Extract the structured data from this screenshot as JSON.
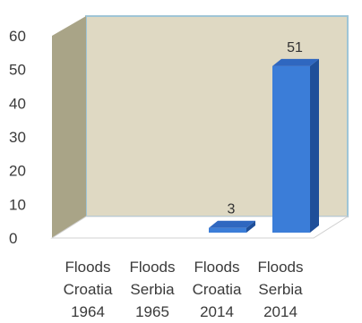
{
  "chart_data": {
    "type": "bar",
    "title": "",
    "xlabel": "",
    "ylabel": "",
    "ylim": [
      0,
      60
    ],
    "yticks": [
      0,
      10,
      20,
      30,
      40,
      50,
      60
    ],
    "categories": [
      [
        "Floods",
        "Croatia",
        "1964"
      ],
      [
        "Floods",
        "Serbia",
        "1965"
      ],
      [
        "Floods",
        "Croatia",
        "2014"
      ],
      [
        "Floods",
        "Serbia",
        "2014"
      ]
    ],
    "values": [
      0,
      0,
      3,
      51
    ],
    "data_labels": [
      "",
      "",
      "3",
      "51"
    ],
    "grid": false,
    "legend": "none",
    "colors": {
      "bar_front": "#3b7dd8",
      "bar_side": "#1f4f99",
      "bar_top": "#2f67c0",
      "back_wall": "#dfd9c3",
      "side_wall": "#a9a487",
      "floor": "#ffffff",
      "wall_edge": "#9fc5d6"
    }
  }
}
